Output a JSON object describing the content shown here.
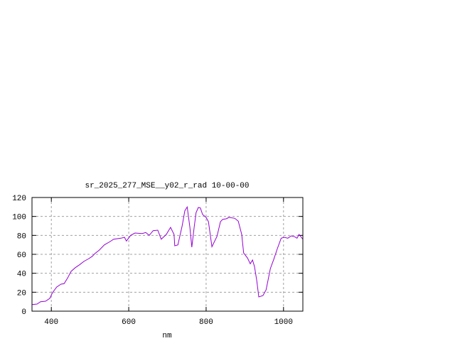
{
  "chart_data": {
    "type": "line",
    "title": "sr_2025_277_MSE__y02_r_rad 10-00-00",
    "xlabel": "nm",
    "ylabel": "",
    "xlim": [
      350,
      1050
    ],
    "ylim": [
      0,
      120
    ],
    "xticks": [
      400,
      600,
      800,
      1000
    ],
    "yticks": [
      0,
      20,
      40,
      60,
      80,
      100,
      120
    ],
    "grid": true,
    "legend": "none",
    "line_color": "#9400d3",
    "series": [
      {
        "x": [
          350,
          363,
          372,
          385,
          396,
          403,
          414,
          425,
          433,
          442,
          451,
          462,
          473,
          484,
          497,
          506,
          513,
          524,
          537,
          552,
          561,
          580,
          589,
          594,
          605,
          616,
          635,
          644,
          653,
          663,
          675,
          684,
          697,
          708,
          717,
          719,
          727,
          738,
          745,
          751,
          758,
          763,
          769,
          774,
          780,
          785,
          791,
          800,
          806,
          815,
          828,
          837,
          843,
          852,
          859,
          874,
          883,
          892,
          897,
          907,
          914,
          920,
          925,
          931,
          936,
          947,
          955,
          966,
          975,
          984,
          994,
          1002,
          1011,
          1020,
          1029,
          1035,
          1040,
          1046,
          1050
        ],
        "y": [
          7,
          7.5,
          10,
          10.5,
          13.5,
          19.5,
          25.5,
          28.5,
          29,
          35,
          42,
          46,
          49,
          52.5,
          55.5,
          58,
          61,
          64.5,
          70,
          73.5,
          76,
          77,
          78,
          74,
          80,
          82.5,
          82,
          83,
          80,
          85,
          85.5,
          76,
          81,
          88.5,
          81,
          69,
          70,
          90,
          106,
          110,
          88.5,
          67.5,
          88.5,
          104,
          109.5,
          109,
          102,
          99,
          94.5,
          68,
          79,
          94.5,
          97,
          97.5,
          99,
          98,
          95,
          81,
          61.5,
          56,
          50,
          54,
          47,
          32,
          15,
          16.5,
          22.5,
          45,
          55,
          66,
          77,
          78,
          77,
          79.5,
          78.5,
          77,
          81,
          78,
          76
        ]
      }
    ]
  }
}
